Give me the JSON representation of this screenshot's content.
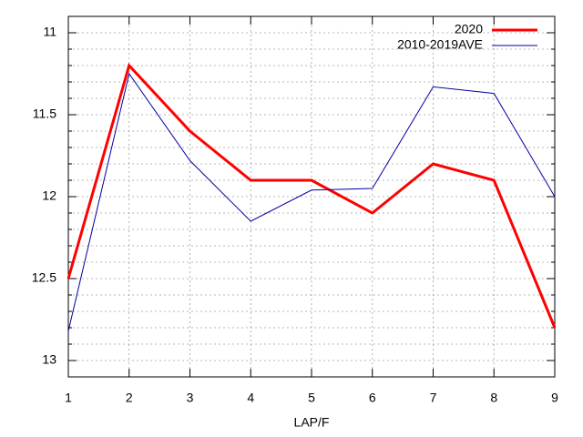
{
  "chart_data": {
    "type": "line",
    "xlabel": "LAP/F",
    "x": [
      1,
      2,
      3,
      4,
      5,
      6,
      7,
      8,
      9
    ],
    "series": [
      {
        "name": "2020",
        "color": "#ff0000",
        "width": 3,
        "values": [
          12.5,
          11.2,
          11.6,
          11.9,
          11.9,
          12.1,
          11.8,
          11.9,
          12.8
        ]
      },
      {
        "name": "2010-2019AVE",
        "color": "#0000a0",
        "width": 1,
        "values": [
          12.82,
          11.25,
          11.78,
          12.15,
          11.96,
          11.95,
          11.33,
          11.37,
          12.0
        ]
      }
    ],
    "xlim": [
      1,
      9
    ],
    "xticks": [
      1,
      2,
      3,
      4,
      5,
      6,
      7,
      8,
      9
    ],
    "ylim": [
      13.1,
      10.9
    ],
    "yticks": [
      11,
      11.5,
      12,
      12.5,
      13
    ],
    "yminorticks": [
      11.1,
      11.2,
      11.3,
      11.4,
      11.6,
      11.7,
      11.8,
      11.9,
      12.1,
      12.2,
      12.3,
      12.4,
      12.6,
      12.7,
      12.8,
      12.9,
      13.1
    ],
    "grid": true,
    "legend": "top-right"
  }
}
